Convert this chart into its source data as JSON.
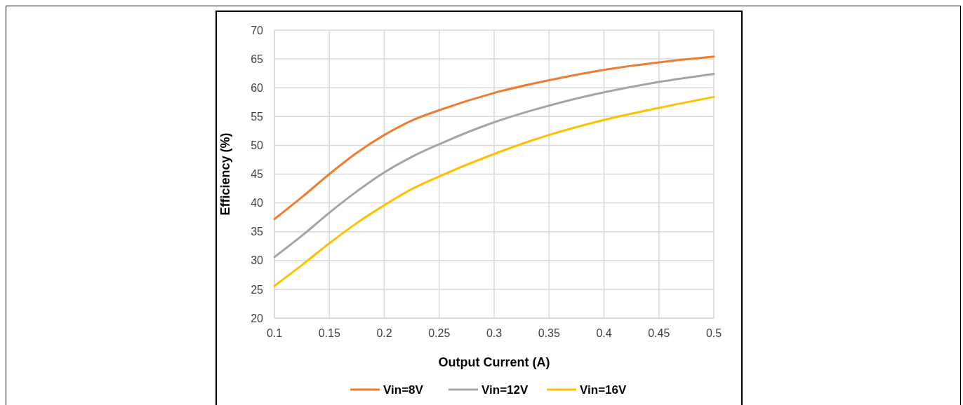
{
  "chart_data": {
    "type": "line",
    "xlabel": "Output Current (A)",
    "ylabel": "Efficiency (%)",
    "x": [
      0.1,
      0.125,
      0.15,
      0.175,
      0.2,
      0.225,
      0.25,
      0.3,
      0.35,
      0.4,
      0.45,
      0.5
    ],
    "series": [
      {
        "name": "Vin=8V",
        "color": "#ed7d31",
        "values": [
          37.2,
          41,
          45,
          48.7,
          51.8,
          54.3,
          56.1,
          59.1,
          61.3,
          63.1,
          64.4,
          65.4
        ]
      },
      {
        "name": "Vin=12V",
        "color": "#a5a5a5",
        "values": [
          30.6,
          34.3,
          38.3,
          42,
          45.3,
          48,
          50.2,
          54,
          56.9,
          59.2,
          61,
          62.4
        ]
      },
      {
        "name": "Vin=16V",
        "color": "#ffc000",
        "values": [
          25.6,
          29.2,
          33,
          36.5,
          39.6,
          42.4,
          44.6,
          48.5,
          51.8,
          54.4,
          56.5,
          58.4
        ]
      }
    ],
    "xlim": [
      0.1,
      0.5
    ],
    "xticks": [
      0.1,
      0.15,
      0.2,
      0.25,
      0.3,
      0.35,
      0.4,
      0.45,
      0.5
    ],
    "ylim": [
      20,
      70
    ],
    "yticks": [
      20,
      25,
      30,
      35,
      40,
      45,
      50,
      55,
      60,
      65,
      70
    ],
    "grid": true,
    "legend": "bottom",
    "marker": "none",
    "line_style": "solid"
  }
}
